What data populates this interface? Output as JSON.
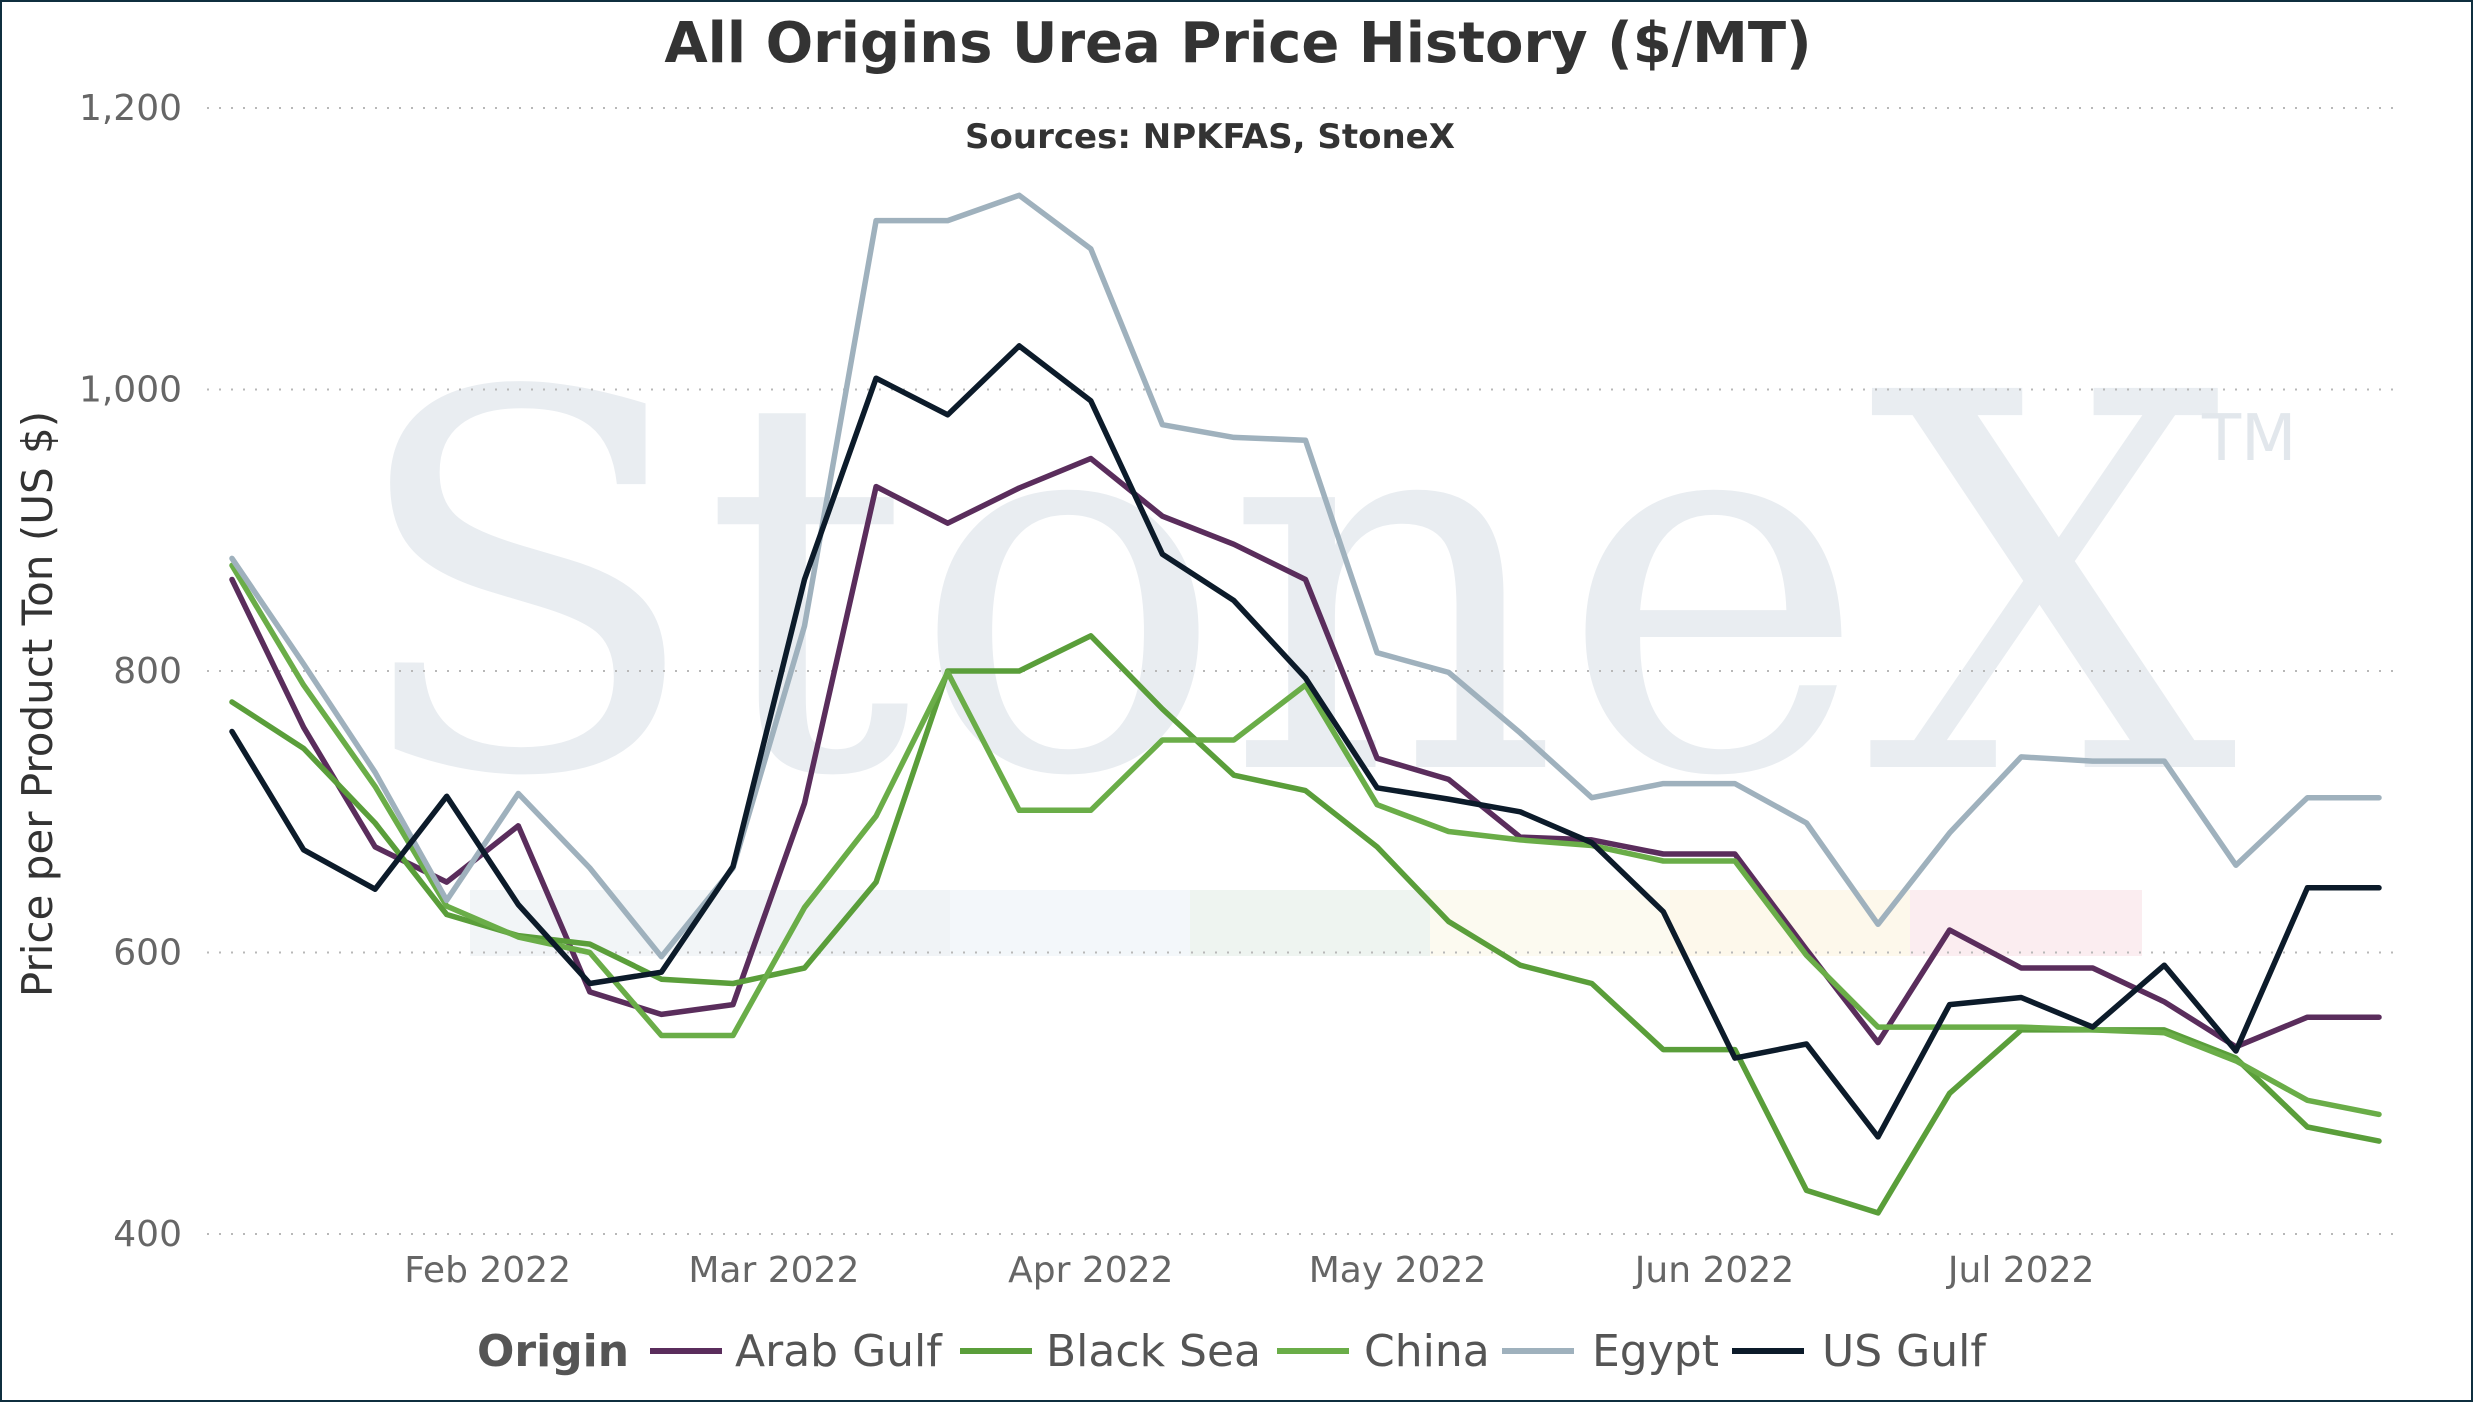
{
  "chart_data": {
    "type": "line",
    "title": "All Origins Urea Price History ($/MT)",
    "subtitle": "Sources: NPKFAS, StoneX",
    "ylabel": "Price per Product Ton (US $)",
    "xlabel": "",
    "ylim": [
      400,
      1200
    ],
    "y_ticks": [
      400,
      600,
      800,
      1000,
      1200
    ],
    "y_tick_labels": [
      "400",
      "600",
      "800",
      "1,000",
      "1,200"
    ],
    "x_range": [
      "2022-01-07",
      "2022-08-05"
    ],
    "x_ticks": [
      {
        "date": "2022-02-01",
        "label": "Feb 2022"
      },
      {
        "date": "2022-03-01",
        "label": "Mar 2022"
      },
      {
        "date": "2022-04-01",
        "label": "Apr 2022"
      },
      {
        "date": "2022-05-01",
        "label": "May 2022"
      },
      {
        "date": "2022-06-01",
        "label": "Jun 2022"
      },
      {
        "date": "2022-07-01",
        "label": "Jul 2022"
      }
    ],
    "grid": true,
    "legend_position": "bottom",
    "legend_title": "Origin",
    "watermark": {
      "text": "StoneX",
      "mark": "TM"
    },
    "x": [
      "2022-01-07",
      "2022-01-14",
      "2022-01-21",
      "2022-01-28",
      "2022-02-04",
      "2022-02-11",
      "2022-02-18",
      "2022-02-25",
      "2022-03-04",
      "2022-03-11",
      "2022-03-18",
      "2022-03-25",
      "2022-04-01",
      "2022-04-08",
      "2022-04-15",
      "2022-04-22",
      "2022-04-29",
      "2022-05-06",
      "2022-05-13",
      "2022-05-20",
      "2022-05-27",
      "2022-06-03",
      "2022-06-10",
      "2022-06-17",
      "2022-06-24",
      "2022-07-01",
      "2022-07-08",
      "2022-07-15",
      "2022-07-22",
      "2022-07-29",
      "2022-08-05"
    ],
    "series": [
      {
        "name": "Arab Gulf",
        "color": "#5a2d5c",
        "values": [
          865,
          760,
          675,
          650,
          690,
          572,
          556,
          563,
          706,
          931,
          905,
          930,
          951,
          910,
          890,
          865,
          738,
          723,
          682,
          680,
          670,
          670,
          602,
          536,
          616,
          589,
          589,
          565,
          533,
          554,
          554
        ]
      },
      {
        "name": "Black Sea",
        "color": "#5a9e3a",
        "values": [
          778,
          745,
          692,
          627,
          612,
          606,
          581,
          578,
          589,
          650,
          800,
          800,
          825,
          773,
          726,
          715,
          675,
          622,
          591,
          578,
          531,
          531,
          431,
          415,
          500,
          545,
          545,
          545,
          525,
          476,
          466
        ]
      },
      {
        "name": "China",
        "color": "#6aad48",
        "values": [
          875,
          790,
          718,
          633,
          611,
          600,
          541,
          541,
          632,
          697,
          799,
          701,
          701,
          751,
          751,
          790,
          705,
          686,
          680,
          676,
          665,
          665,
          598,
          547,
          547,
          547,
          545,
          543,
          523,
          495,
          485
        ]
      },
      {
        "name": "Egypt",
        "color": "#9fb1bd",
        "values": [
          880,
          805,
          728,
          637,
          713,
          660,
          597,
          660,
          832,
          1120,
          1120,
          1138,
          1100,
          975,
          966,
          964,
          813,
          799,
          756,
          710,
          720,
          720,
          692,
          620,
          685,
          739,
          736,
          736,
          662,
          710,
          710
        ]
      },
      {
        "name": "US Gulf",
        "color": "#0c1b2a",
        "values": [
          757,
          673,
          645,
          711,
          634,
          578,
          586,
          661,
          865,
          1008,
          982,
          1031,
          992,
          883,
          850,
          795,
          717,
          709,
          700,
          678,
          629,
          525,
          535,
          469,
          563,
          568,
          547,
          591,
          530,
          646,
          646
        ]
      }
    ]
  }
}
